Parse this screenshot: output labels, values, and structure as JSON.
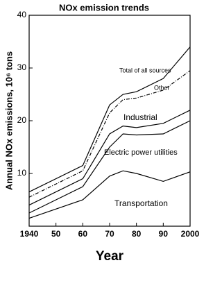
{
  "chart_data": {
    "type": "line",
    "title": "NOx emission trends",
    "xlabel": "Year",
    "ylabel": "Annual NOx emissions, 10⁶ tons",
    "x": [
      1940,
      1960,
      1970,
      1975,
      1980,
      1990,
      2000
    ],
    "series": [
      {
        "name": "Transportation",
        "color": "#000000",
        "values": [
          1.5,
          5,
          9.5,
          10.5,
          10,
          8.5,
          10.3
        ]
      },
      {
        "name": "Electric power utilities",
        "color": "#000000",
        "values": [
          2.5,
          7.5,
          15,
          17.5,
          17.3,
          17.5,
          20
        ]
      },
      {
        "name": "Industrial",
        "color": "#000000",
        "values": [
          4,
          9,
          17.5,
          19,
          18.7,
          19.5,
          22
        ]
      },
      {
        "name": "Other",
        "color": "#000000",
        "values": [
          5.5,
          10.5,
          21.5,
          24,
          24.3,
          25.8,
          29.5
        ]
      },
      {
        "name": "Total of all sources",
        "color": "#000000",
        "values": [
          6.5,
          11.5,
          23,
          25,
          25.5,
          28,
          34
        ]
      }
    ],
    "xlim": [
      1940,
      2000
    ],
    "xticks": [
      1940,
      {
        "value": 1950,
        "label": "50"
      },
      {
        "value": 1960,
        "label": "60"
      },
      {
        "value": 1970,
        "label": "70"
      },
      {
        "value": 1980,
        "label": "80"
      },
      {
        "value": 1990,
        "label": "90"
      },
      2000
    ],
    "ylim": [
      0,
      40
    ],
    "yticks": [
      10,
      20,
      30,
      40
    ]
  }
}
